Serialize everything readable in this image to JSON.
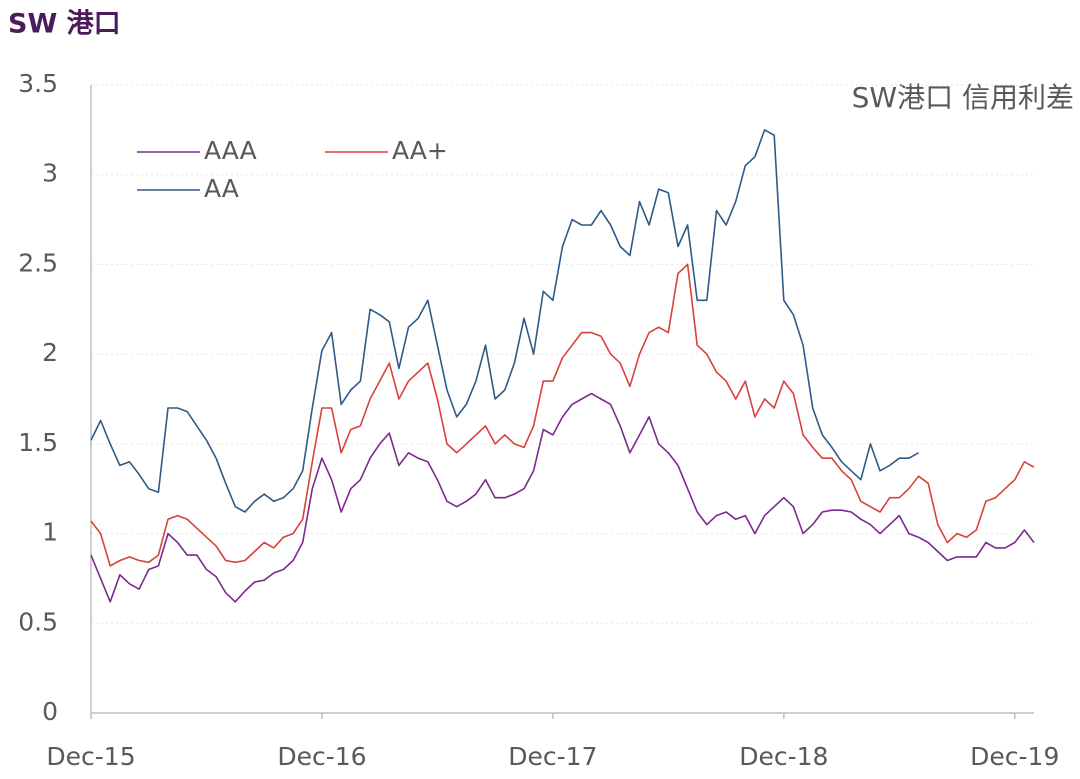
{
  "chart_data": {
    "type": "line",
    "title": "SW 港口",
    "annotation": "SW港口 信用利差",
    "categories": [
      "Dec-15",
      null,
      null,
      null,
      null,
      null,
      null,
      null,
      null,
      null,
      null,
      null,
      null,
      null,
      null,
      null,
      null,
      null,
      null,
      null,
      null,
      null,
      null,
      null,
      "Dec-16",
      null,
      null,
      null,
      null,
      null,
      null,
      null,
      null,
      null,
      null,
      null,
      null,
      null,
      null,
      null,
      null,
      null,
      null,
      null,
      null,
      null,
      null,
      null,
      "Dec-17",
      null,
      null,
      null,
      null,
      null,
      null,
      null,
      null,
      null,
      null,
      null,
      null,
      null,
      null,
      null,
      null,
      null,
      null,
      null,
      null,
      null,
      null,
      null,
      "Dec-18",
      null,
      null,
      null,
      null,
      null,
      null,
      null,
      null,
      null,
      null,
      null,
      null,
      null,
      null,
      null,
      null,
      null,
      null,
      null,
      null,
      null,
      null,
      null,
      "Dec-19",
      null,
      null
    ],
    "series": [
      {
        "name": "AAA",
        "color": "#7b2a8e",
        "values": [
          0.88,
          0.75,
          0.62,
          0.77,
          0.72,
          0.69,
          0.8,
          0.82,
          1.0,
          0.95,
          0.88,
          0.88,
          0.8,
          0.76,
          0.67,
          0.62,
          0.68,
          0.73,
          0.74,
          0.78,
          0.8,
          0.85,
          0.95,
          1.25,
          1.42,
          1.3,
          1.12,
          1.25,
          1.3,
          1.42,
          1.5,
          1.56,
          1.38,
          1.45,
          1.42,
          1.4,
          1.3,
          1.18,
          1.15,
          1.18,
          1.22,
          1.3,
          1.2,
          1.2,
          1.22,
          1.25,
          1.35,
          1.58,
          1.55,
          1.65,
          1.72,
          1.75,
          1.78,
          1.75,
          1.72,
          1.6,
          1.45,
          1.55,
          1.65,
          1.5,
          1.45,
          1.38,
          1.25,
          1.12,
          1.05,
          1.1,
          1.12,
          1.08,
          1.1,
          1.0,
          1.1,
          1.15,
          1.2,
          1.15,
          1.0,
          1.05,
          1.12,
          1.13,
          1.13,
          1.12,
          1.08,
          1.05,
          1.0,
          1.05,
          1.1,
          1.0,
          0.98,
          0.95,
          0.9,
          0.85,
          0.87,
          0.87,
          0.87,
          0.95,
          0.92,
          0.92,
          0.95,
          1.02,
          0.95
        ]
      },
      {
        "name": "AA+",
        "color": "#d9413a",
        "values": [
          1.07,
          1.0,
          0.82,
          0.85,
          0.87,
          0.85,
          0.84,
          0.88,
          1.08,
          1.1,
          1.08,
          1.03,
          0.98,
          0.93,
          0.85,
          0.84,
          0.85,
          0.9,
          0.95,
          0.92,
          0.98,
          1.0,
          1.08,
          1.4,
          1.7,
          1.7,
          1.45,
          1.58,
          1.6,
          1.75,
          1.85,
          1.95,
          1.75,
          1.85,
          1.9,
          1.95,
          1.75,
          1.5,
          1.45,
          1.5,
          1.55,
          1.6,
          1.5,
          1.55,
          1.5,
          1.48,
          1.6,
          1.85,
          1.85,
          1.98,
          2.05,
          2.12,
          2.12,
          2.1,
          2.0,
          1.95,
          1.82,
          2.0,
          2.12,
          2.15,
          2.12,
          2.45,
          2.5,
          2.05,
          2.0,
          1.9,
          1.85,
          1.75,
          1.85,
          1.65,
          1.75,
          1.7,
          1.85,
          1.78,
          1.55,
          1.48,
          1.42,
          1.42,
          1.35,
          1.3,
          1.18,
          1.15,
          1.12,
          1.2,
          1.2,
          1.25,
          1.32,
          1.28,
          1.05,
          0.95,
          1.0,
          0.98,
          1.02,
          1.18,
          1.2,
          1.25,
          1.3,
          1.4,
          1.37
        ]
      },
      {
        "name": "AA",
        "color": "#2f5a87",
        "values": [
          1.52,
          1.63,
          1.5,
          1.38,
          1.4,
          1.33,
          1.25,
          1.23,
          1.7,
          1.7,
          1.68,
          1.6,
          1.52,
          1.42,
          1.28,
          1.15,
          1.12,
          1.18,
          1.22,
          1.18,
          1.2,
          1.25,
          1.35,
          1.7,
          2.02,
          2.12,
          1.72,
          1.8,
          1.85,
          2.25,
          2.22,
          2.18,
          1.92,
          2.15,
          2.2,
          2.3,
          2.05,
          1.8,
          1.65,
          1.72,
          1.85,
          2.05,
          1.75,
          1.8,
          1.95,
          2.2,
          2.0,
          2.35,
          2.3,
          2.6,
          2.75,
          2.72,
          2.72,
          2.8,
          2.72,
          2.6,
          2.55,
          2.85,
          2.72,
          2.92,
          2.9,
          2.6,
          2.72,
          2.3,
          2.3,
          2.8,
          2.72,
          2.85,
          3.05,
          3.1,
          3.25,
          3.22,
          2.3,
          2.22,
          2.05,
          1.7,
          1.55,
          1.48,
          1.4,
          1.35,
          1.3,
          1.5,
          1.35,
          1.38,
          1.42,
          1.42,
          1.45,
          null,
          null,
          null,
          null,
          null,
          null,
          null,
          null,
          null,
          null,
          null,
          null
        ]
      }
    ],
    "ylim": [
      0,
      3.5
    ],
    "yticks": [
      0,
      0.5,
      1,
      1.5,
      2,
      2.5,
      3,
      3.5
    ],
    "grid": true
  }
}
